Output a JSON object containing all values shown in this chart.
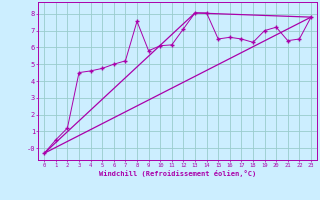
{
  "title": "",
  "xlabel": "Windchill (Refroidissement éolien,°C)",
  "ylabel": "",
  "bg_color": "#cceeff",
  "line_color": "#aa00aa",
  "grid_color": "#99cccc",
  "xlim": [
    -0.5,
    23.5
  ],
  "ylim": [
    -0.7,
    8.7
  ],
  "yticks": [
    0,
    1,
    2,
    3,
    4,
    5,
    6,
    7,
    8
  ],
  "ytick_labels": [
    "-0",
    "1",
    "2",
    "3",
    "4",
    "5",
    "6",
    "7",
    "8"
  ],
  "xticks": [
    0,
    1,
    2,
    3,
    4,
    5,
    6,
    7,
    8,
    9,
    10,
    11,
    12,
    13,
    14,
    15,
    16,
    17,
    18,
    19,
    20,
    21,
    22,
    23
  ],
  "scatter_x": [
    0,
    1,
    2,
    3,
    4,
    5,
    6,
    7,
    8,
    9,
    10,
    11,
    12,
    13,
    14,
    15,
    16,
    17,
    18,
    19,
    20,
    21,
    22,
    23
  ],
  "scatter_y": [
    -0.3,
    0.5,
    1.2,
    4.5,
    4.6,
    4.75,
    5.0,
    5.2,
    7.55,
    5.8,
    6.1,
    6.15,
    7.1,
    8.05,
    8.05,
    6.5,
    6.6,
    6.5,
    6.3,
    7.0,
    7.2,
    6.4,
    6.5,
    7.8
  ],
  "line1_x": [
    0,
    23
  ],
  "line1_y": [
    -0.3,
    7.8
  ],
  "line2_x": [
    0,
    13,
    23
  ],
  "line2_y": [
    -0.3,
    8.05,
    7.8
  ]
}
